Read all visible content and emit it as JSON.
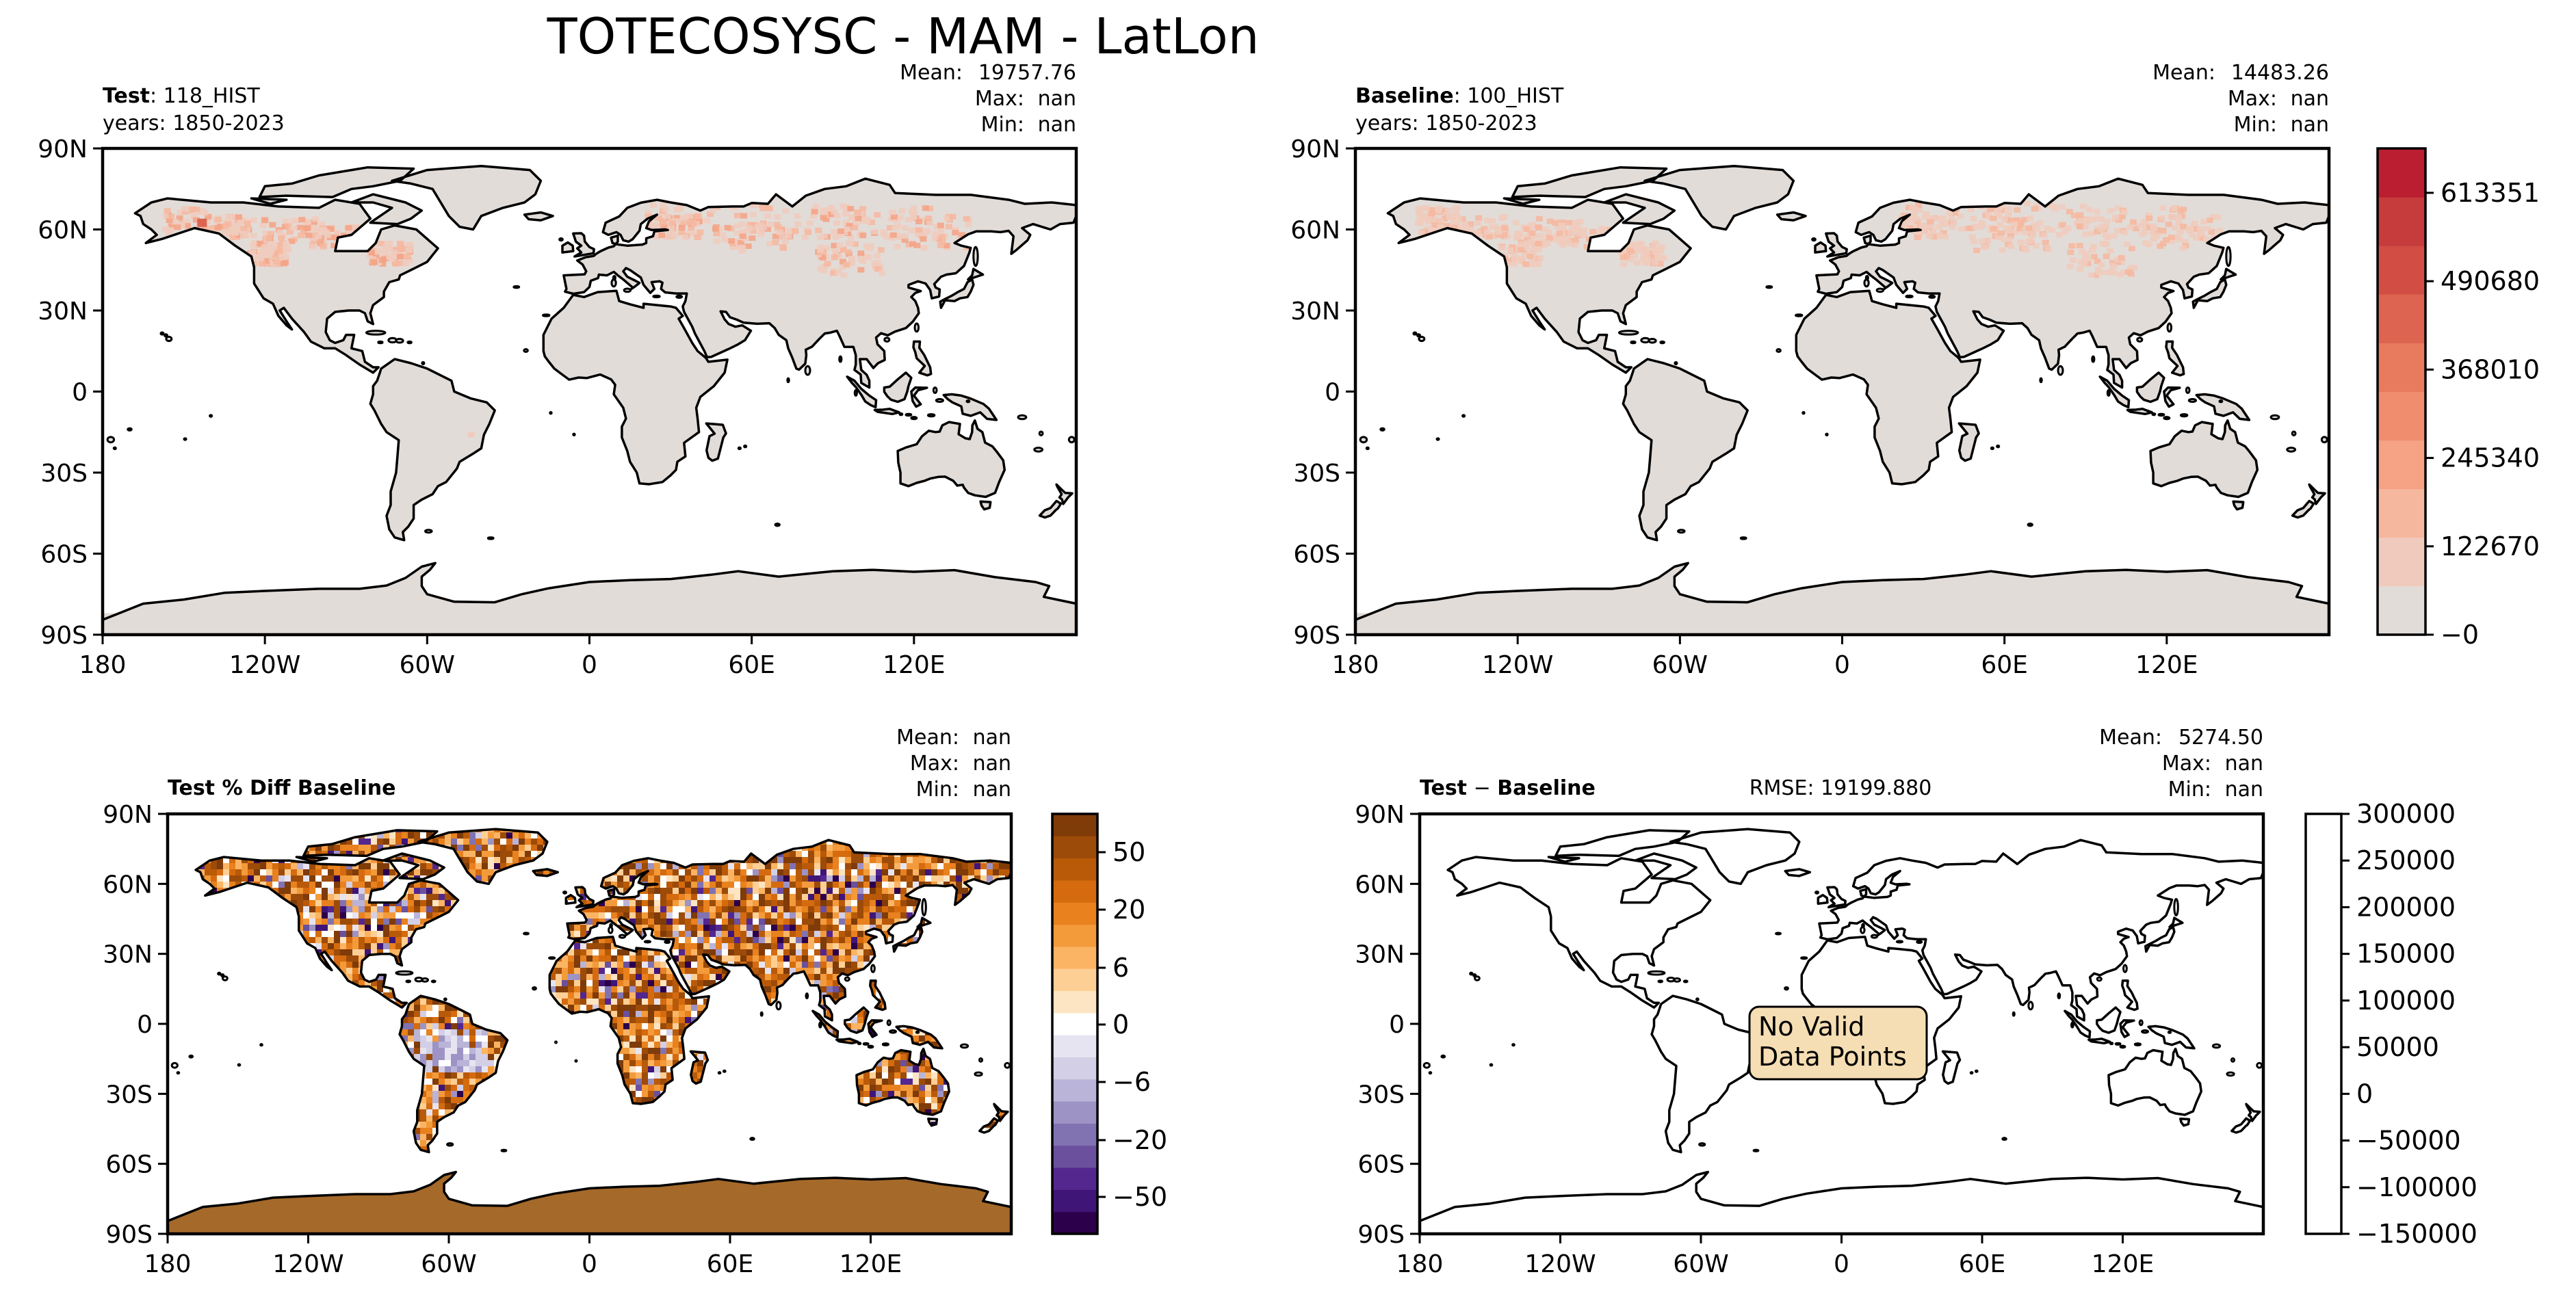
{
  "figure": {
    "title": "TOTECOSYSC - MAM - LatLon"
  },
  "colors": {
    "land_neutral": "#e2dcd8",
    "red_ramp": [
      "#e2dcd8",
      "#f0cbbd",
      "#f6b79f",
      "#f5a285",
      "#f08d6f",
      "#e87a5d",
      "#dc6450",
      "#d24e45",
      "#c63b3b",
      "#bb1e31"
    ],
    "orange_ramp": [
      "#fde4c2",
      "#fdcf95",
      "#fbb463",
      "#f39a3b",
      "#e8811e",
      "#d56b0e",
      "#b95a09",
      "#9d4b08",
      "#7f3b08"
    ],
    "purple_ramp": [
      "#e7e4f1",
      "#d2cfe6",
      "#b9b4d8",
      "#9d93c5",
      "#8173b1",
      "#6a509d",
      "#54278f",
      "#3f1677",
      "#2d004b"
    ],
    "message_box": "#f5deb3"
  },
  "chart_data": [
    {
      "type": "heatmap",
      "panel": "test",
      "label_bold": "Test",
      "label_rest": ": 118_HIST",
      "years": "years: 1850-2023",
      "stats": {
        "mean_label": "Mean:",
        "mean": "19757.76",
        "max_label": "Max:",
        "max": "nan",
        "min_label": "Min:",
        "min": "nan"
      },
      "x_ticks": [
        "180",
        "120W",
        "60W",
        "0",
        "60E",
        "120E"
      ],
      "y_ticks": [
        "90N",
        "60N",
        "30N",
        "0",
        "30S",
        "60S",
        "90S"
      ],
      "xlim": [
        -180,
        180
      ],
      "ylim": [
        -90,
        90
      ],
      "colorbar": "shared-right"
    },
    {
      "type": "heatmap",
      "panel": "baseline",
      "label_bold": "Baseline",
      "label_rest": ": 100_HIST",
      "years": "years: 1850-2023",
      "stats": {
        "mean_label": "Mean:",
        "mean": "14483.26",
        "max_label": "Max:",
        "max": "nan",
        "min_label": "Min:",
        "min": "nan"
      },
      "x_ticks": [
        "180",
        "120W",
        "60W",
        "0",
        "60E",
        "120E"
      ],
      "y_ticks": [
        "90N",
        "60N",
        "30N",
        "0",
        "30S",
        "60S",
        "90S"
      ],
      "xlim": [
        -180,
        180
      ],
      "ylim": [
        -90,
        90
      ],
      "colorbar": {
        "tick_labels": [
          "613351",
          "490680",
          "368010",
          "245340",
          "122670",
          "−0"
        ],
        "levels": 10,
        "range": [
          0,
          675000
        ]
      }
    },
    {
      "type": "heatmap",
      "panel": "pct_diff",
      "label_bold": "Test % Diff Baseline",
      "stats": {
        "mean_label": "Mean:",
        "mean": "nan",
        "max_label": "Max:",
        "max": "nan",
        "min_label": "Min:",
        "min": "nan"
      },
      "x_ticks": [
        "180",
        "120W",
        "60W",
        "0",
        "60E",
        "120E"
      ],
      "y_ticks": [
        "90N",
        "60N",
        "30N",
        "0",
        "30S",
        "60S",
        "90S"
      ],
      "xlim": [
        -180,
        180
      ],
      "ylim": [
        -90,
        90
      ],
      "colorbar": {
        "tick_labels": [
          "50",
          "20",
          "6",
          "0",
          "−6",
          "−20",
          "−50"
        ],
        "levels": 19
      }
    },
    {
      "type": "heatmap",
      "panel": "diff",
      "label_bold": "Test",
      "label_rest": " − ",
      "label_bold2": "Baseline",
      "rmse": "RMSE: 19199.880",
      "stats": {
        "mean_label": "Mean:",
        "mean": "5274.50",
        "max_label": "Max:",
        "max": "nan",
        "min_label": "Min:",
        "min": "nan"
      },
      "message": [
        "No Valid",
        "Data Points"
      ],
      "x_ticks": [
        "180",
        "120W",
        "60W",
        "0",
        "60E",
        "120E"
      ],
      "y_ticks": [
        "90N",
        "60N",
        "30N",
        "0",
        "30S",
        "60S",
        "90S"
      ],
      "xlim": [
        -180,
        180
      ],
      "ylim": [
        -90,
        90
      ],
      "colorbar": {
        "tick_labels": [
          "300000",
          "250000",
          "200000",
          "150000",
          "100000",
          "50000",
          "0",
          "−50000",
          "−100000",
          "−150000"
        ],
        "range": [
          -150000,
          300000
        ]
      }
    }
  ]
}
